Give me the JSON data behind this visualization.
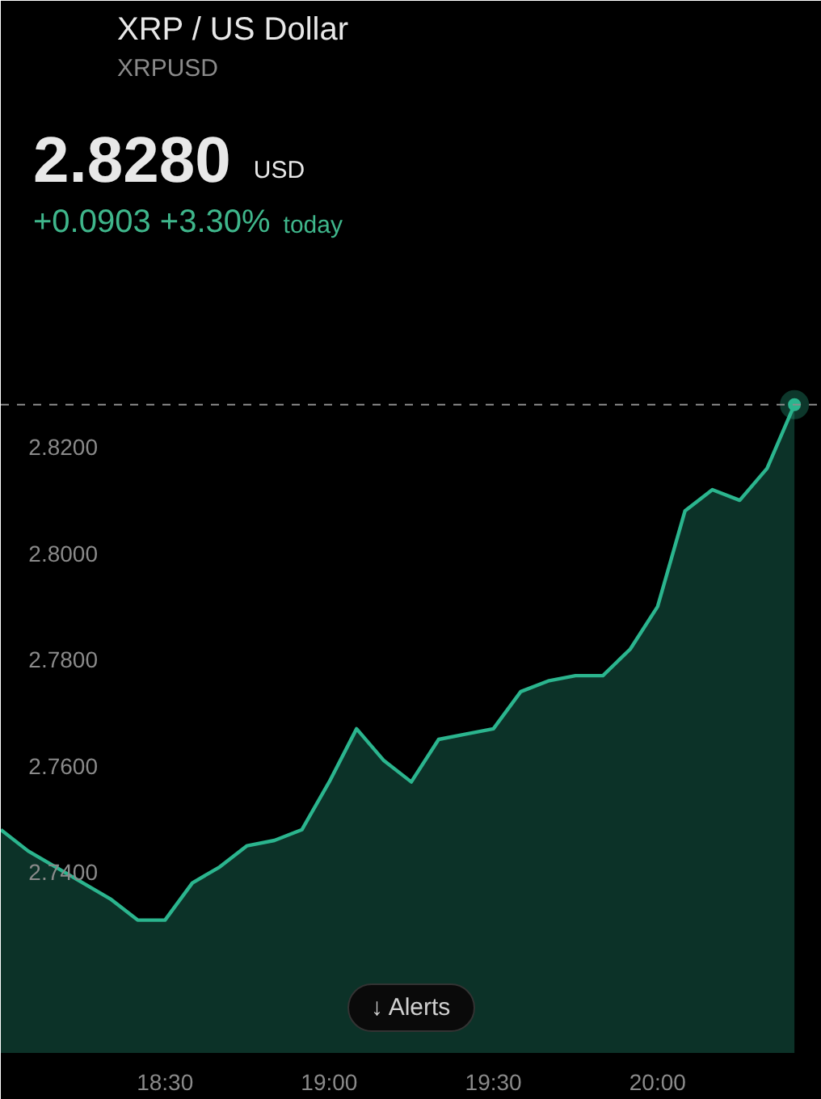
{
  "chart_data": {
    "type": "area",
    "title": "XRP / US Dollar",
    "subtitle": "XRPUSD",
    "annotations": [
      "2.8280",
      "USD",
      "+0.0903 +3.30%",
      "today",
      "↓ Alerts"
    ],
    "x": [
      18,
      18.0833,
      18.1667,
      18.25,
      18.3333,
      18.4167,
      18.5,
      18.5833,
      18.6667,
      18.75,
      18.8333,
      18.9167,
      19,
      19.0833,
      19.1667,
      19.25,
      19.3333,
      19.4167,
      19.5,
      19.5833,
      19.6667,
      19.75,
      19.8333,
      19.9167,
      20,
      20.0833,
      20.1667,
      20.25,
      20.3333,
      20.4167
    ],
    "series": [
      {
        "color": "#2bb58e",
        "values": [
          2.748,
          2.744,
          2.741,
          2.738,
          2.735,
          2.731,
          2.731,
          2.738,
          2.741,
          2.745,
          2.746,
          2.748,
          2.757,
          2.767,
          2.761,
          2.757,
          2.765,
          2.766,
          2.767,
          2.774,
          2.776,
          2.777,
          2.777,
          2.782,
          2.79,
          2.808,
          2.812,
          2.81,
          2.816,
          2.828
        ]
      },
      {
        "type": "scatter",
        "x": [
          20.4167
        ],
        "values": [
          2.828
        ],
        "color": "#2bb58e",
        "marker": "circle"
      }
    ],
    "xlim": [
      18.0,
      20.5
    ],
    "xticks": [
      {
        "value": 18.5,
        "label": "18:30"
      },
      {
        "value": 19,
        "label": "19:00"
      },
      {
        "value": 19.5,
        "label": "19:30"
      },
      {
        "value": 20,
        "label": "20:00"
      }
    ],
    "ylim": [
      2.706,
      2.904
    ],
    "yticks": [
      {
        "value": 2.74,
        "label": "2.7400"
      },
      {
        "value": 2.76,
        "label": "2.7600"
      },
      {
        "value": 2.78,
        "label": "2.7800"
      },
      {
        "value": 2.8,
        "label": "2.8000"
      },
      {
        "value": 2.82,
        "label": "2.8200"
      }
    ],
    "ref_lines": [
      {
        "axis": "y",
        "value": 2.828,
        "color": "#8c8c8c",
        "line_style": "dashed"
      }
    ]
  }
}
